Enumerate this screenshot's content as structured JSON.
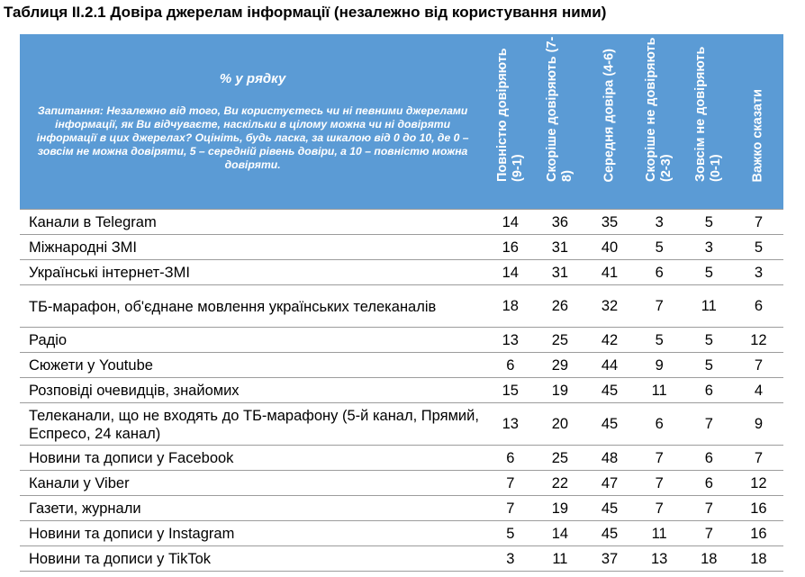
{
  "title": "Таблиця ІІ.2.1 Довіра джерелам інформації (незалежно від користування ними)",
  "header": {
    "pct_label": "% у рядку",
    "question": "Запитання: Незалежно від того, Ви користуєтесь чи ні певними джерелами інформації, як Ви відчуваєте, наскільки в цілому можна чи ні довіряти інформації в цих джерелах? Оцініть, будь ласка, за шкалою від 0 до 10, де 0 – зовсім не можна довіряти, 5 – середній рівень довіри, а 10 – повністю можна довіряти.",
    "columns": [
      "Повністю довіряють (9-1)",
      "Скоріше довіряють (7-8)",
      "Середня довіра (4-6)",
      "Скоріше не довіряють (2-3)",
      "Зовсім не довіряють (0-1)",
      "Важко сказати"
    ]
  },
  "rows": [
    {
      "label": "Канали в Telegram",
      "values": [
        "14",
        "36",
        "35",
        "3",
        "5",
        "7"
      ]
    },
    {
      "label": "Міжнародні ЗМІ",
      "values": [
        "16",
        "31",
        "40",
        "5",
        "3",
        "5"
      ]
    },
    {
      "label": "Українські інтернет-ЗМІ",
      "values": [
        "14",
        "31",
        "41",
        "6",
        "5",
        "3"
      ]
    },
    {
      "label": "ТБ-марафон, об'єднане мовлення українських телеканалів",
      "values": [
        "18",
        "26",
        "32",
        "7",
        "11",
        "6"
      ]
    },
    {
      "label": "Радіо",
      "values": [
        "13",
        "25",
        "42",
        "5",
        "5",
        "12"
      ]
    },
    {
      "label": "Сюжети у Youtube",
      "values": [
        "6",
        "29",
        "44",
        "9",
        "5",
        "7"
      ]
    },
    {
      "label": "Розповіді очевидців, знайомих",
      "values": [
        "15",
        "19",
        "45",
        "11",
        "6",
        "4"
      ]
    },
    {
      "label": "Телеканали, що не входять до ТБ-марафону (5-й канал, Прямий, Еспресо, 24 канал)",
      "values": [
        "13",
        "20",
        "45",
        "6",
        "7",
        "9"
      ]
    },
    {
      "label": "Новини та дописи у Facebook",
      "values": [
        "6",
        "25",
        "48",
        "7",
        "6",
        "7"
      ]
    },
    {
      "label": "Канали у Viber",
      "values": [
        "7",
        "22",
        "47",
        "7",
        "6",
        "12"
      ]
    },
    {
      "label": "Газети, журнали",
      "values": [
        "7",
        "19",
        "45",
        "7",
        "7",
        "16"
      ]
    },
    {
      "label": "Новини та дописи у Instagram",
      "values": [
        "5",
        "14",
        "45",
        "11",
        "7",
        "16"
      ]
    },
    {
      "label": "Новини та дописи у TikTok",
      "values": [
        "3",
        "11",
        "37",
        "13",
        "18",
        "18"
      ]
    }
  ],
  "colors": {
    "header_bg": "#5b9bd5",
    "header_text": "#ffffff",
    "row_border": "#9c9c9c"
  }
}
